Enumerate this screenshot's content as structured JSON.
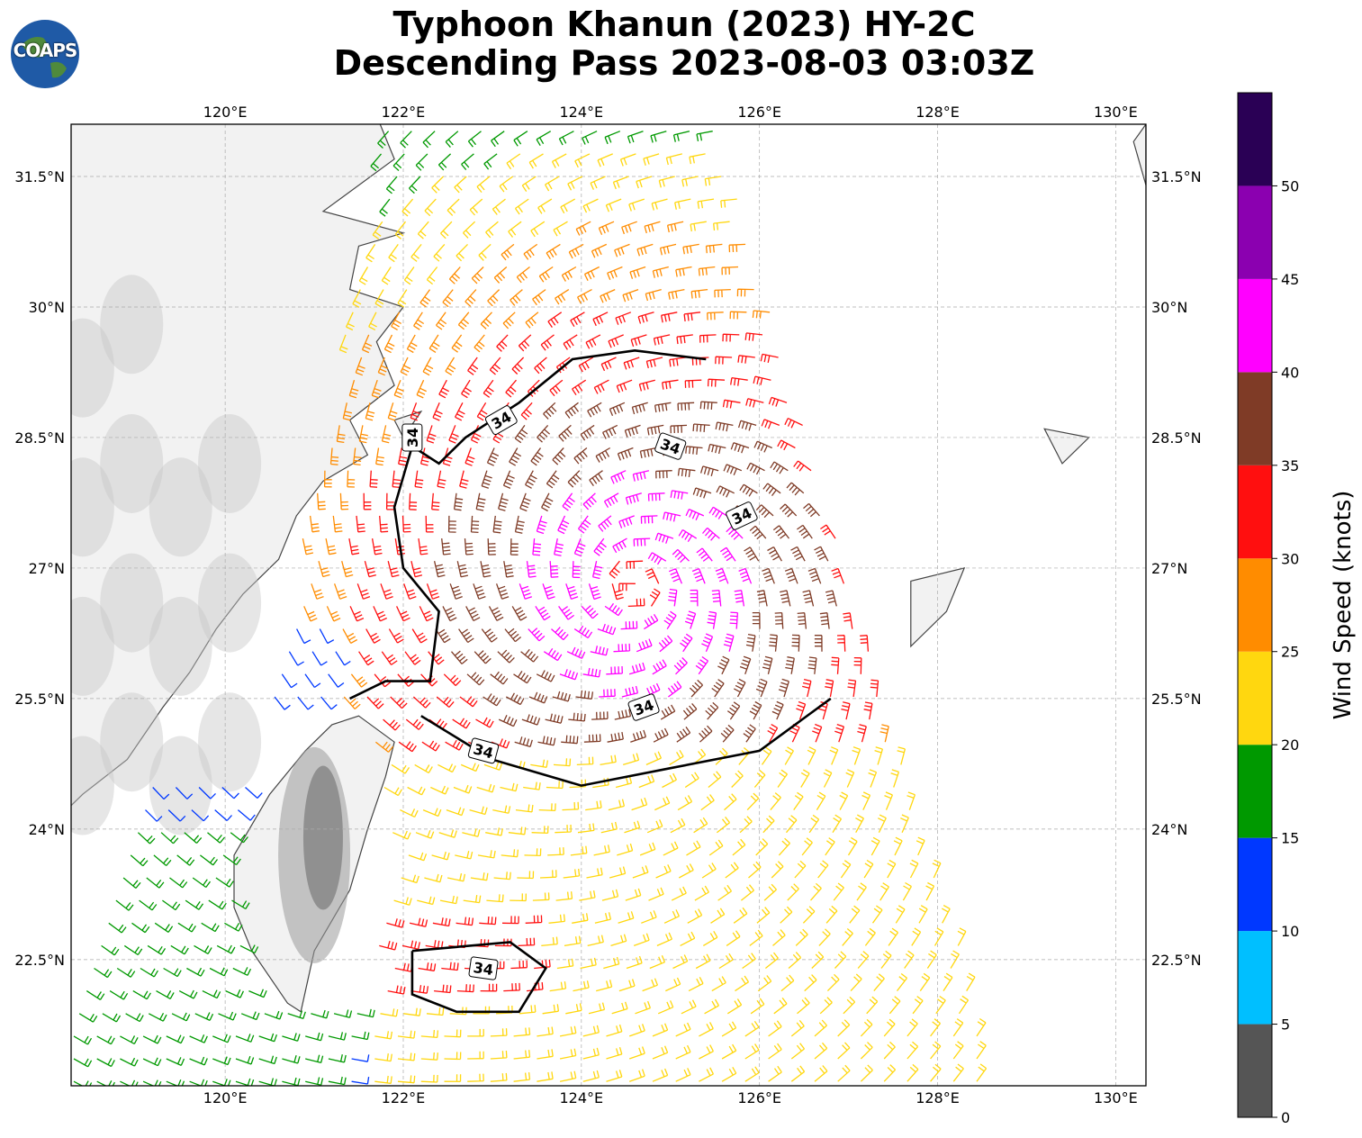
{
  "title_line1": "Typhoon Khanun (2023) HY-2C",
  "title_line2": "Descending Pass 2023-08-03 03:03Z",
  "logo_text": "COAPS",
  "map": {
    "lon_ticks": [
      "120°E",
      "122°E",
      "124°E",
      "126°E",
      "128°E",
      "130°E"
    ],
    "lat_ticks": [
      "31.5°N",
      "30°N",
      "28.5°N",
      "27°N",
      "25.5°N",
      "24°N",
      "22.5°N"
    ],
    "extent": {
      "lon_min": 118.27,
      "lon_max": 130.34,
      "lat_min": 21.05,
      "lat_max": 32.1
    },
    "contour_label": "34",
    "land_color": "#f2f2f2",
    "coast_color": "#444444",
    "storm_center": {
      "lon": 124.6,
      "lat": 26.8
    }
  },
  "colorbar": {
    "title": "Wind Speed (knots)",
    "ticks": [
      "0",
      "5",
      "10",
      "15",
      "20",
      "25",
      "30",
      "35",
      "40",
      "45",
      "50"
    ],
    "colors": [
      "#555555",
      "#00bfff",
      "#0038ff",
      "#009900",
      "#ffd70f",
      "#ff8c00",
      "#ff0f0f",
      "#7f3b26",
      "#ff00ff",
      "#8b00b0",
      "#2a0055"
    ]
  }
}
